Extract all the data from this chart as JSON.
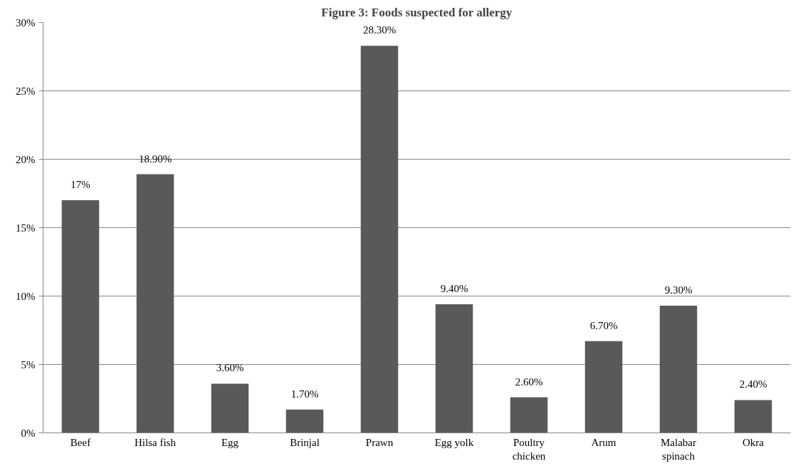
{
  "chart_data": {
    "type": "bar",
    "title": "Figure 3: Foods suspected for allergy",
    "categories": [
      "Beef",
      "Hilsa fish",
      "Egg",
      "Brinjal",
      "Prawn",
      "Egg yolk",
      "Poultry chicken",
      "Arum",
      "Malabar spinach",
      "Okra"
    ],
    "values": [
      17,
      18.9,
      3.6,
      1.7,
      28.3,
      9.4,
      2.6,
      6.7,
      9.3,
      2.4
    ],
    "value_labels": [
      "17%",
      "18.90%",
      "3.60%",
      "1.70%",
      "28.30%",
      "9.40%",
      "2.60%",
      "6.70%",
      "9.30%",
      "2.40%"
    ],
    "color": "#595959",
    "ylim": [
      0,
      30
    ],
    "yticks": [
      {
        "value": 0,
        "label": "0%"
      },
      {
        "value": 5,
        "label": "5%"
      },
      {
        "value": 10,
        "label": "10%"
      },
      {
        "value": 15,
        "label": "15%"
      },
      {
        "value": 20,
        "label": "20%"
      },
      {
        "value": 25,
        "label": "25%"
      },
      {
        "value": 30,
        "label": "30%"
      }
    ],
    "grid": "y"
  }
}
